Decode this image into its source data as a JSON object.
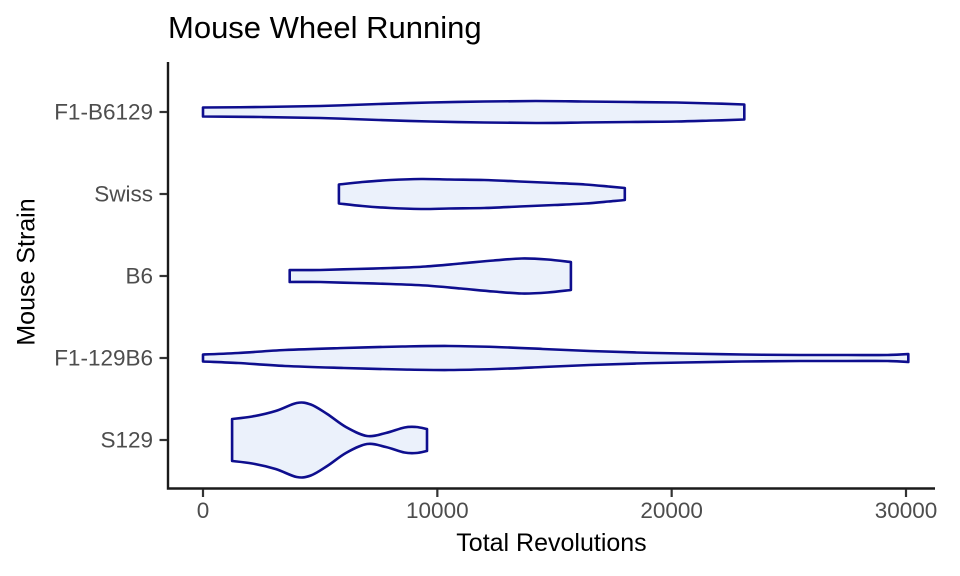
{
  "chart_data": {
    "type": "violin",
    "orientation": "horizontal",
    "title": "Mouse Wheel Running",
    "xlabel": "Total Revolutions",
    "ylabel": "Mouse Strain",
    "xlim": [
      0,
      31500
    ],
    "xticks": [
      0,
      10000,
      20000,
      30000
    ],
    "xtick_labels": [
      "0",
      "10000",
      "20000",
      "30000"
    ],
    "categories": [
      "F1-B6129",
      "Swiss",
      "B6",
      "F1-129B6",
      "S129"
    ],
    "grid": "off",
    "legend": "none",
    "series": [
      {
        "name": "F1-B6129",
        "x_range": [
          0,
          23100
        ],
        "profile": [
          [
            0,
            4.5
          ],
          [
            2500,
            5
          ],
          [
            5000,
            6
          ],
          [
            7500,
            8
          ],
          [
            9700,
            9.5
          ],
          [
            12000,
            10.5
          ],
          [
            14200,
            11
          ],
          [
            16200,
            10.5
          ],
          [
            18200,
            10
          ],
          [
            20200,
            9.5
          ],
          [
            21800,
            8.5
          ],
          [
            23100,
            7.5
          ]
        ]
      },
      {
        "name": "Swiss",
        "x_range": [
          5800,
          18000
        ],
        "profile": [
          [
            5800,
            9.5
          ],
          [
            6800,
            12
          ],
          [
            8000,
            14
          ],
          [
            9300,
            15
          ],
          [
            10500,
            14.5
          ],
          [
            12000,
            14
          ],
          [
            13500,
            12.5
          ],
          [
            15000,
            11
          ],
          [
            16300,
            9.5
          ],
          [
            17300,
            7.5
          ],
          [
            18000,
            6
          ]
        ]
      },
      {
        "name": "B6",
        "x_range": [
          3700,
          15700
        ],
        "profile": [
          [
            3700,
            6
          ],
          [
            5000,
            6
          ],
          [
            6500,
            7
          ],
          [
            8000,
            8
          ],
          [
            9500,
            9.5
          ],
          [
            11000,
            12.5
          ],
          [
            12400,
            15.5
          ],
          [
            13600,
            17.5
          ],
          [
            14700,
            16.5
          ],
          [
            15700,
            14
          ]
        ]
      },
      {
        "name": "F1-129B6",
        "x_range": [
          0,
          30100
        ],
        "profile": [
          [
            0,
            3.5
          ],
          [
            1500,
            5
          ],
          [
            3500,
            8
          ],
          [
            6000,
            10
          ],
          [
            8500,
            11.5
          ],
          [
            10500,
            12
          ],
          [
            12500,
            11
          ],
          [
            14500,
            9
          ],
          [
            16500,
            7
          ],
          [
            18500,
            5.5
          ],
          [
            20500,
            4.5
          ],
          [
            23000,
            3.5
          ],
          [
            25500,
            3
          ],
          [
            27500,
            3
          ],
          [
            29200,
            3
          ],
          [
            30100,
            4
          ]
        ]
      },
      {
        "name": "S129",
        "x_range": [
          1240,
          9560
        ],
        "profile": [
          [
            1240,
            21
          ],
          [
            2100,
            23.5
          ],
          [
            3100,
            29
          ],
          [
            4000,
            37
          ],
          [
            4600,
            35.5
          ],
          [
            5300,
            26
          ],
          [
            6100,
            13
          ],
          [
            7000,
            4
          ],
          [
            7800,
            7
          ],
          [
            8600,
            12.5
          ],
          [
            9100,
            13
          ],
          [
            9560,
            11
          ]
        ]
      }
    ],
    "style": {
      "violin_fill": "#EBF1FB",
      "violin_stroke": "#0E0E8E",
      "axis_line_color": "#1A1A1A",
      "tick_mark_color": "#333333",
      "tick_label_color": "#4D4D4D",
      "title_color": "#000000"
    }
  }
}
